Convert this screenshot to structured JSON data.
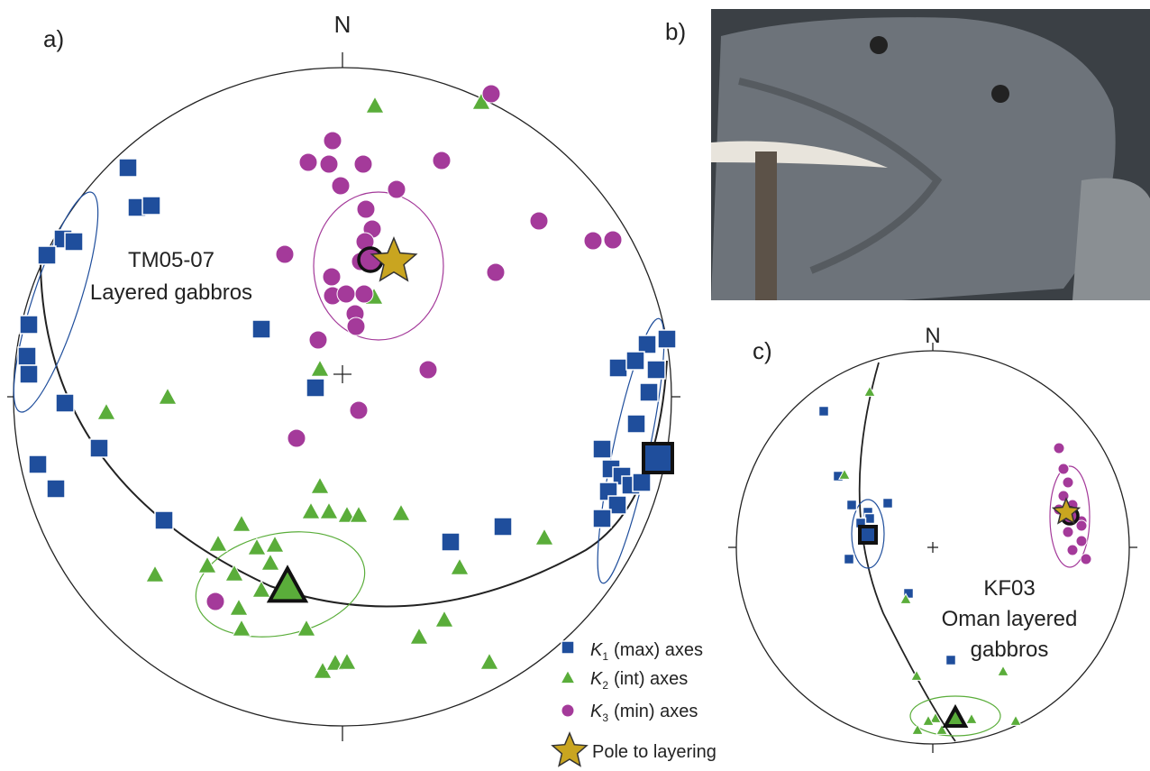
{
  "panel_a": {
    "label": "a)",
    "north": "N",
    "sample": "TM05-07",
    "description": "Layered gabbros"
  },
  "panel_b": {
    "label": "b)"
  },
  "panel_c": {
    "label": "c)",
    "north": "N",
    "sample": "KF03",
    "description_line1": "Oman layered",
    "description_line2": "gabbros"
  },
  "legend": {
    "items": [
      {
        "symbol": "K",
        "subscript": "1",
        "text": "(max) axes"
      },
      {
        "symbol": "K",
        "subscript": "2",
        "text": "(int) axes"
      },
      {
        "symbol": "K",
        "subscript": "3",
        "text": "(min) axes"
      },
      {
        "text": "Pole to layering"
      }
    ]
  }
}
